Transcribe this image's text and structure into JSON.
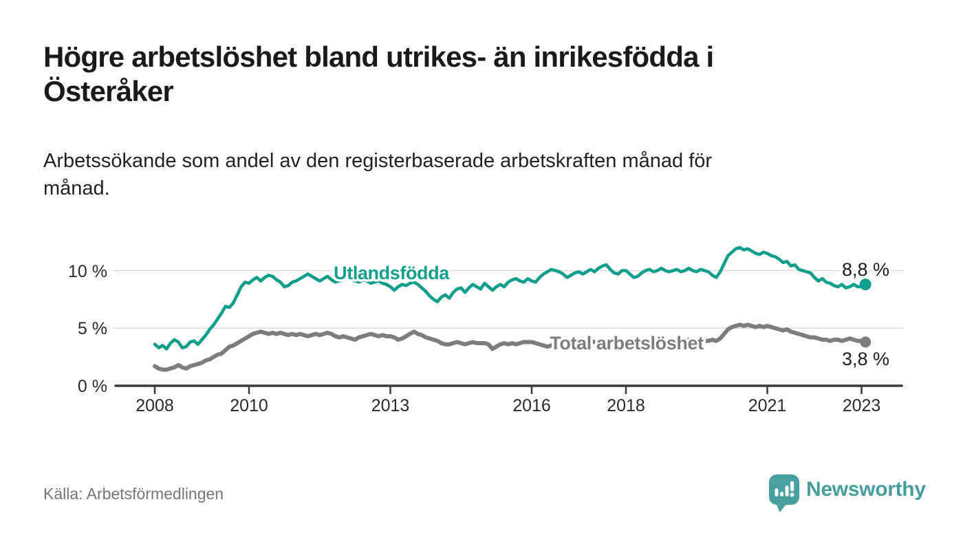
{
  "page": {
    "title_lines": [
      "Högre arbetslöshet bland utrikes- än inrikesfödda i",
      "Österåker"
    ],
    "subtitle_lines": [
      "Arbetssökande som andel av den registerbaserade arbetskraften månad för",
      "månad."
    ],
    "source": "Källa: Arbetsförmedlingen",
    "brand": "Newsworthy"
  },
  "colors": {
    "accent_teal": "#129e8c",
    "line_gray": "#7d7d7d",
    "grid": "#dadada",
    "axis": "#3a3a3a",
    "tick_label": "#2b2b2b",
    "title_text": "#1a1a1a",
    "body_text": "#212121",
    "source_text": "#767676",
    "value_label": "#1c1c1c",
    "brand_teal": "#479c9d",
    "background": "#ffffff"
  },
  "chart_data": {
    "type": "line",
    "title": "Högre arbetslöshet bland utrikes- än inrikesfödda i Österåker",
    "subtitle": "Arbetssökande som andel av den registerbaserade arbetskraften månad för månad.",
    "unit": "%",
    "x_start_year": 2008,
    "points_per_year": 12,
    "x_end": "2023-02",
    "xlabel": "",
    "ylabel": "",
    "ylim": [
      0,
      12.5
    ],
    "grid": true,
    "legend_position": "inline-labels",
    "x_ticks": [
      {
        "year": 2008,
        "label": "2008"
      },
      {
        "year": 2010,
        "label": "2010"
      },
      {
        "year": 2013,
        "label": "2013"
      },
      {
        "year": 2016,
        "label": "2016"
      },
      {
        "year": 2018,
        "label": "2018"
      },
      {
        "year": 2021,
        "label": "2021"
      },
      {
        "year": 2023,
        "label": "2023"
      }
    ],
    "y_ticks": [
      {
        "value": 0,
        "label": "0 %"
      },
      {
        "value": 5,
        "label": "5 %"
      },
      {
        "value": 10,
        "label": "10 %"
      }
    ],
    "series": [
      {
        "name": "Utlandsfödda",
        "color": "#129e8c",
        "end_label": "8,8 %",
        "end_value": 8.8,
        "values": [
          3.6,
          3.3,
          3.5,
          3.2,
          3.7,
          4.0,
          3.8,
          3.3,
          3.4,
          3.8,
          3.9,
          3.6,
          4.0,
          4.4,
          4.9,
          5.3,
          5.8,
          6.3,
          6.9,
          6.8,
          7.2,
          7.9,
          8.6,
          9.0,
          8.9,
          9.2,
          9.4,
          9.1,
          9.4,
          9.6,
          9.5,
          9.2,
          9.0,
          8.6,
          8.7,
          9.0,
          9.1,
          9.3,
          9.5,
          9.7,
          9.5,
          9.3,
          9.1,
          9.3,
          9.5,
          9.2,
          9.0,
          9.1,
          9.2,
          9.4,
          9.2,
          9.1,
          9.0,
          9.2,
          9.1,
          8.9,
          9.0,
          9.1,
          8.9,
          8.8,
          8.6,
          8.3,
          8.6,
          8.8,
          8.7,
          8.9,
          9.0,
          8.8,
          8.5,
          8.2,
          7.8,
          7.5,
          7.3,
          7.7,
          7.9,
          7.6,
          8.1,
          8.4,
          8.5,
          8.1,
          8.5,
          8.8,
          8.6,
          8.4,
          8.9,
          8.6,
          8.3,
          8.6,
          8.8,
          8.6,
          9.0,
          9.2,
          9.3,
          9.1,
          9.0,
          9.3,
          9.1,
          9.0,
          9.4,
          9.7,
          9.9,
          10.1,
          10.0,
          9.9,
          9.7,
          9.4,
          9.6,
          9.8,
          9.9,
          9.7,
          9.9,
          10.1,
          9.9,
          10.2,
          10.4,
          10.5,
          10.1,
          9.8,
          9.7,
          10.0,
          10.0,
          9.7,
          9.4,
          9.5,
          9.8,
          10.0,
          10.1,
          9.9,
          10.0,
          10.2,
          10.0,
          9.9,
          10.0,
          10.1,
          9.9,
          10.0,
          10.2,
          10.0,
          9.9,
          10.1,
          10.0,
          9.9,
          9.6,
          9.4,
          9.9,
          10.6,
          11.3,
          11.6,
          11.9,
          12.0,
          11.8,
          11.9,
          11.7,
          11.5,
          11.4,
          11.6,
          11.5,
          11.3,
          11.2,
          11.0,
          10.7,
          10.8,
          10.4,
          10.5,
          10.1,
          10.0,
          9.9,
          9.8,
          9.4,
          9.1,
          9.3,
          9.0,
          8.9,
          8.7,
          8.6,
          8.8,
          8.5,
          8.6,
          8.8,
          8.6,
          8.6,
          8.8
        ]
      },
      {
        "name": "Total arbetslöshet",
        "color": "#7d7d7d",
        "end_label": "3,8 %",
        "end_value": 3.8,
        "values": [
          1.7,
          1.5,
          1.4,
          1.4,
          1.5,
          1.6,
          1.8,
          1.6,
          1.5,
          1.7,
          1.8,
          1.9,
          2.0,
          2.2,
          2.3,
          2.5,
          2.7,
          2.8,
          3.1,
          3.4,
          3.5,
          3.7,
          3.9,
          4.1,
          4.3,
          4.5,
          4.6,
          4.7,
          4.6,
          4.5,
          4.6,
          4.5,
          4.6,
          4.5,
          4.4,
          4.5,
          4.4,
          4.5,
          4.4,
          4.3,
          4.4,
          4.5,
          4.4,
          4.5,
          4.6,
          4.5,
          4.3,
          4.2,
          4.3,
          4.2,
          4.1,
          4.0,
          4.2,
          4.3,
          4.4,
          4.5,
          4.4,
          4.3,
          4.4,
          4.3,
          4.3,
          4.2,
          4.0,
          4.1,
          4.3,
          4.5,
          4.7,
          4.5,
          4.4,
          4.2,
          4.1,
          4.0,
          3.9,
          3.7,
          3.6,
          3.6,
          3.7,
          3.8,
          3.7,
          3.6,
          3.7,
          3.8,
          3.7,
          3.7,
          3.7,
          3.6,
          3.2,
          3.4,
          3.6,
          3.7,
          3.6,
          3.7,
          3.6,
          3.7,
          3.8,
          3.8,
          3.8,
          3.7,
          3.6,
          3.5,
          3.4,
          3.5,
          3.6,
          3.7,
          3.8,
          3.7,
          3.8,
          3.9,
          3.8,
          3.7,
          3.8,
          3.9,
          3.8,
          3.7,
          3.8,
          3.9,
          4.0,
          3.9,
          3.8,
          3.9,
          3.8,
          3.7,
          3.6,
          3.7,
          3.8,
          3.7,
          3.6,
          3.7,
          3.8,
          3.9,
          3.8,
          3.7,
          3.8,
          3.9,
          3.8,
          3.9,
          4.0,
          3.9,
          3.9,
          4.0,
          3.9,
          3.9,
          4.0,
          3.9,
          4.1,
          4.5,
          4.9,
          5.1,
          5.2,
          5.3,
          5.2,
          5.3,
          5.2,
          5.1,
          5.2,
          5.1,
          5.2,
          5.1,
          5.0,
          4.9,
          4.8,
          4.9,
          4.7,
          4.6,
          4.5,
          4.4,
          4.3,
          4.2,
          4.2,
          4.1,
          4.0,
          4.0,
          3.9,
          4.0,
          4.0,
          3.9,
          4.0,
          4.1,
          4.0,
          3.9,
          3.9,
          3.8
        ]
      }
    ]
  }
}
